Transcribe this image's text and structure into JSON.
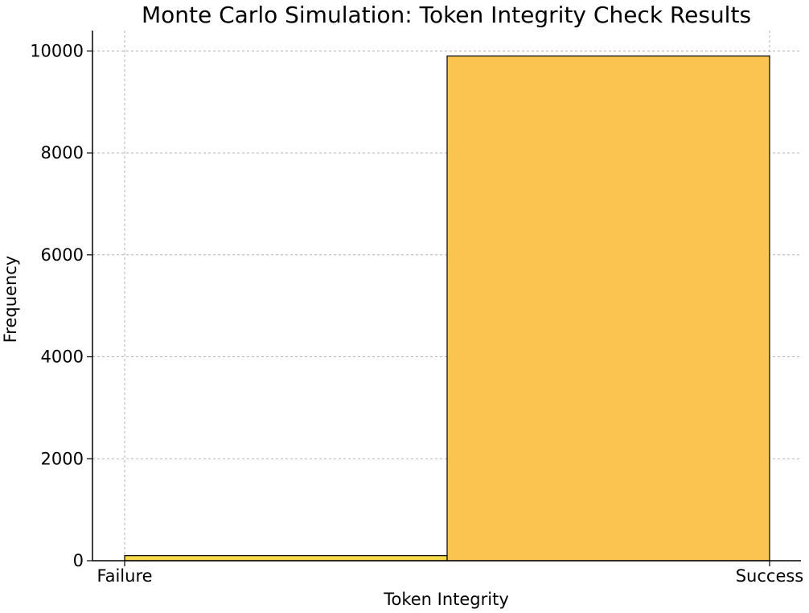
{
  "chart_data": {
    "type": "bar",
    "title": "Monte Carlo Simulation: Token Integrity Check Results",
    "xlabel": "Token Integrity",
    "ylabel": "Frequency",
    "categories": [
      "Failure",
      "Success"
    ],
    "values": [
      100,
      9900
    ],
    "ylim": [
      0,
      10400
    ],
    "yticks": [
      0,
      2000,
      4000,
      6000,
      8000,
      10000
    ],
    "ytick_labels": [
      "0",
      "2000",
      "4000",
      "6000",
      "8000",
      "10000"
    ],
    "xtick_labels": [
      "Failure",
      "Success"
    ],
    "grid": true,
    "colors": {
      "Failure": "#f7d84a",
      "Success": "#fbc44f",
      "edge": "#000000",
      "grid": "#b0b0b0"
    }
  }
}
